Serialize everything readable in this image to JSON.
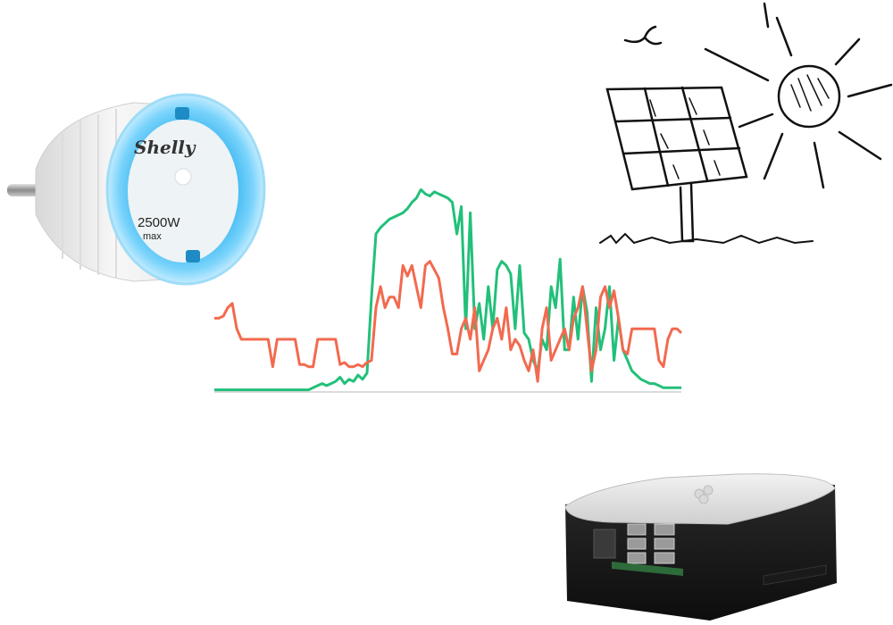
{
  "plug": {
    "brand": "Shelly",
    "rating": "2500W",
    "rating_sub": "max"
  },
  "chart_data": {
    "type": "line",
    "title": "",
    "xlabel": "",
    "ylabel": "",
    "ylim": [
      0,
      100
    ],
    "x": [
      0,
      1,
      2,
      3,
      4,
      5,
      6,
      7,
      8,
      9,
      10,
      11,
      12,
      13,
      14,
      15,
      16,
      17,
      18,
      19,
      20,
      21,
      22,
      23,
      24,
      25,
      26,
      27,
      28,
      29,
      30,
      31,
      32,
      33,
      34,
      35,
      36,
      37,
      38,
      39,
      40,
      41,
      42,
      43,
      44,
      45,
      46,
      47,
      48,
      49,
      50,
      51,
      52,
      53,
      54,
      55,
      56,
      57,
      58,
      59,
      60,
      61,
      62,
      63,
      64,
      65,
      66,
      67,
      68,
      69,
      70,
      71,
      72,
      73,
      74,
      75,
      76,
      77,
      78,
      79,
      80,
      81,
      82,
      83,
      84,
      85,
      86,
      87,
      88,
      89,
      90,
      91,
      92,
      93,
      94,
      95,
      96,
      97,
      98,
      99,
      100,
      101,
      102,
      103,
      104
    ],
    "series": [
      {
        "color": "#22c07a",
        "values": [
          1,
          1,
          1,
          1,
          1,
          1,
          1,
          1,
          1,
          1,
          1,
          1,
          1,
          1,
          1,
          1,
          1,
          1,
          1,
          1,
          1,
          1,
          2,
          3,
          4,
          3,
          4,
          5,
          7,
          4,
          6,
          5,
          8,
          6,
          9,
          45,
          75,
          78,
          80,
          82,
          83,
          84,
          85,
          87,
          90,
          92,
          96,
          94,
          93,
          95,
          94,
          93,
          92,
          90,
          75,
          88,
          30,
          85,
          30,
          42,
          25,
          50,
          30,
          58,
          62,
          60,
          56,
          30,
          60,
          28,
          25,
          15,
          10,
          25,
          20,
          50,
          40,
          63,
          20,
          20,
          45,
          25,
          50,
          38,
          5,
          40,
          20,
          30,
          50,
          15,
          35,
          20,
          15,
          10,
          8,
          6,
          5,
          4,
          4,
          3,
          2,
          2,
          2,
          2,
          2
        ]
      },
      {
        "color": "#f26a4f",
        "values": [
          35,
          35,
          36,
          40,
          42,
          30,
          25,
          25,
          25,
          25,
          25,
          25,
          25,
          12,
          25,
          25,
          25,
          25,
          25,
          13,
          13,
          12,
          12,
          25,
          25,
          25,
          25,
          25,
          13,
          14,
          12,
          12,
          13,
          12,
          14,
          15,
          40,
          50,
          40,
          45,
          45,
          40,
          60,
          55,
          60,
          50,
          40,
          60,
          62,
          58,
          54,
          40,
          30,
          18,
          18,
          30,
          35,
          25,
          40,
          10,
          15,
          20,
          30,
          35,
          25,
          40,
          20,
          25,
          22,
          15,
          10,
          20,
          5,
          30,
          40,
          15,
          20,
          25,
          30,
          20,
          35,
          40,
          50,
          30,
          10,
          20,
          45,
          50,
          40,
          48,
          35,
          20,
          18,
          30,
          30,
          30,
          30,
          30,
          30,
          15,
          12,
          25,
          30,
          30,
          28
        ]
      }
    ]
  }
}
